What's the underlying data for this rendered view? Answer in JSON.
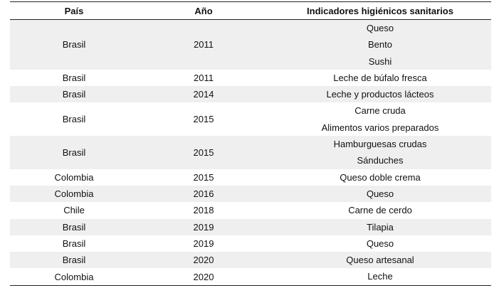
{
  "table": {
    "headers": {
      "country": "País",
      "year": "Año",
      "indicators": "Indicadores higiénicos sanitarios"
    },
    "rows": [
      {
        "country": "Brasil",
        "year": "2011",
        "indicators": [
          "Queso",
          "Bento",
          "Sushi"
        ],
        "shaded": true
      },
      {
        "country": "Brasil",
        "year": "2011",
        "indicators": [
          "Leche de búfalo fresca"
        ],
        "shaded": false
      },
      {
        "country": "Brasil",
        "year": "2014",
        "indicators": [
          "Leche y productos lácteos"
        ],
        "shaded": true
      },
      {
        "country": "Brasil",
        "year": "2015",
        "indicators": [
          "Carne cruda",
          "Alimentos varios preparados"
        ],
        "shaded": false
      },
      {
        "country": "Brasil",
        "year": "2015",
        "indicators": [
          "Hamburguesas crudas",
          "Sánduches"
        ],
        "shaded": true
      },
      {
        "country": "Colombia",
        "year": "2015",
        "indicators": [
          "Queso doble crema"
        ],
        "shaded": false
      },
      {
        "country": "Colombia",
        "year": "2016",
        "indicators": [
          "Queso"
        ],
        "shaded": true
      },
      {
        "country": "Chile",
        "year": "2018",
        "indicators": [
          "Carne de cerdo"
        ],
        "shaded": false
      },
      {
        "country": "Brasil",
        "year": "2019",
        "indicators": [
          "Tilapia"
        ],
        "shaded": true
      },
      {
        "country": "Brasil",
        "year": "2019",
        "indicators": [
          "Queso"
        ],
        "shaded": false
      },
      {
        "country": "Brasil",
        "year": "2020",
        "indicators": [
          "Queso artesanal"
        ],
        "shaded": true
      },
      {
        "country": "Colombia",
        "year": "2020",
        "indicators": [
          "Leche"
        ],
        "shaded": false
      }
    ]
  }
}
